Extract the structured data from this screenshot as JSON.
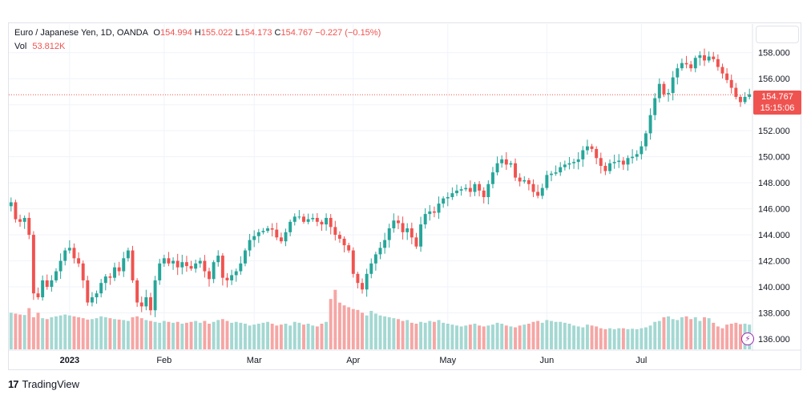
{
  "legend": {
    "symbol": "Euro / Japanese Yen, 1D, OANDA",
    "o_label": "O",
    "o_value": "154.994",
    "h_label": "H",
    "h_value": "155.022",
    "l_label": "L",
    "l_value": "154.173",
    "c_label": "C",
    "c_value": "154.767",
    "change": "−0.227 (−0.15%)",
    "vol_label": "Vol",
    "vol_value": "53.812K"
  },
  "price_tag": {
    "price": "154.767",
    "countdown": "15:15:06"
  },
  "footer": {
    "brand": "TradingView",
    "logo_mark": "17"
  },
  "icons": {
    "bolt": "lightning-icon",
    "logo": "tradingview-logo-icon"
  },
  "colors": {
    "up": "#26a69a",
    "down": "#ef5350",
    "vol_up": "#a4d8d2",
    "vol_down": "#f5a6a4",
    "grid": "#f0f3fa",
    "axis_text": "#131722"
  },
  "chart_data": {
    "type": "candlestick",
    "title": "Euro / Japanese Yen, 1D, OANDA",
    "x_labels": [
      "2023",
      "Feb",
      "Mar",
      "Apr",
      "May",
      "Jun",
      "Jul"
    ],
    "x_label_index": [
      13,
      34,
      54,
      76,
      97,
      119,
      140
    ],
    "y_ticks": [
      "158.000",
      "156.000",
      "154.000",
      "152.000",
      "150.000",
      "148.000",
      "146.000",
      "144.000",
      "142.000",
      "140.000",
      "138.000",
      "136.000"
    ],
    "ylim": [
      135.2,
      160.2
    ],
    "last_price": 154.767,
    "grid": true,
    "closes": [
      146.5,
      145.2,
      145.0,
      145.3,
      144.0,
      139.5,
      139.2,
      140.5,
      140.0,
      140.5,
      141.2,
      142.0,
      142.8,
      143.0,
      142.2,
      141.8,
      140.5,
      138.8,
      139.2,
      139.5,
      140.3,
      140.8,
      140.7,
      141.5,
      141.2,
      142.2,
      142.8,
      140.5,
      138.8,
      138.5,
      139.2,
      138.2,
      140.5,
      141.8,
      142.2,
      141.8,
      142.0,
      141.5,
      141.9,
      141.6,
      141.4,
      141.8,
      142.0,
      141.2,
      140.6,
      141.9,
      142.4,
      140.7,
      140.5,
      140.9,
      141.2,
      141.8,
      142.8,
      143.6,
      143.9,
      144.2,
      144.3,
      144.5,
      144.4,
      143.8,
      143.5,
      144.2,
      145.0,
      145.4,
      145.4,
      145.0,
      145.2,
      145.3,
      145.0,
      144.8,
      145.3,
      144.6,
      144.0,
      143.7,
      143.2,
      142.8,
      141.0,
      140.3,
      139.8,
      141.0,
      141.8,
      142.5,
      143.0,
      143.6,
      144.5,
      145.1,
      144.9,
      144.2,
      144.5,
      143.8,
      143.1,
      144.8,
      145.6,
      145.8,
      145.7,
      146.4,
      146.8,
      146.9,
      147.2,
      147.4,
      147.5,
      147.6,
      147.3,
      147.9,
      147.4,
      146.9,
      147.9,
      148.8,
      149.5,
      149.8,
      149.4,
      149.5,
      148.4,
      148.1,
      148.2,
      147.9,
      147.3,
      147.0,
      147.6,
      148.6,
      148.7,
      148.8,
      149.2,
      149.4,
      149.5,
      149.6,
      149.8,
      150.5,
      150.8,
      150.6,
      149.9,
      149.3,
      148.9,
      149.5,
      149.6,
      149.7,
      149.4,
      149.9,
      150.0,
      150.2,
      150.8,
      151.8,
      153.2,
      154.5,
      155.6,
      154.8,
      154.9,
      156.1,
      156.8,
      157.2,
      157.1,
      156.8,
      157.6,
      157.8,
      157.4,
      157.7,
      157.5,
      156.9,
      156.4,
      155.9,
      155.3,
      154.6,
      154.2,
      154.6,
      154.8
    ],
    "volume": [
      80,
      78,
      76,
      75,
      90,
      70,
      80,
      68,
      66,
      70,
      72,
      74,
      76,
      74,
      72,
      70,
      68,
      65,
      66,
      68,
      72,
      70,
      68,
      66,
      65,
      64,
      62,
      70,
      72,
      68,
      64,
      62,
      60,
      58,
      62,
      60,
      58,
      60,
      56,
      58,
      60,
      62,
      58,
      62,
      56,
      60,
      64,
      66,
      62,
      58,
      60,
      58,
      56,
      52,
      54,
      56,
      58,
      60,
      56,
      52,
      54,
      56,
      52,
      60,
      58,
      54,
      56,
      52,
      50,
      56,
      60,
      110,
      130,
      102,
      96,
      92,
      88,
      86,
      80,
      74,
      84,
      78,
      74,
      72,
      70,
      68,
      66,
      62,
      64,
      58,
      56,
      60,
      58,
      62,
      60,
      64,
      58,
      56,
      54,
      52,
      50,
      52,
      54,
      56,
      52,
      50,
      52,
      54,
      58,
      56,
      52,
      50,
      48,
      52,
      54,
      56,
      60,
      62,
      58,
      64,
      62,
      60,
      60,
      58,
      56,
      52,
      50,
      48,
      54,
      52,
      50,
      46,
      44,
      46,
      44,
      46,
      46,
      44,
      45,
      44,
      46,
      48,
      52,
      60,
      62,
      70,
      72,
      66,
      64,
      70,
      72,
      66,
      70,
      62,
      70,
      68,
      58,
      50,
      46,
      54,
      56,
      58,
      55,
      56,
      54
    ]
  }
}
